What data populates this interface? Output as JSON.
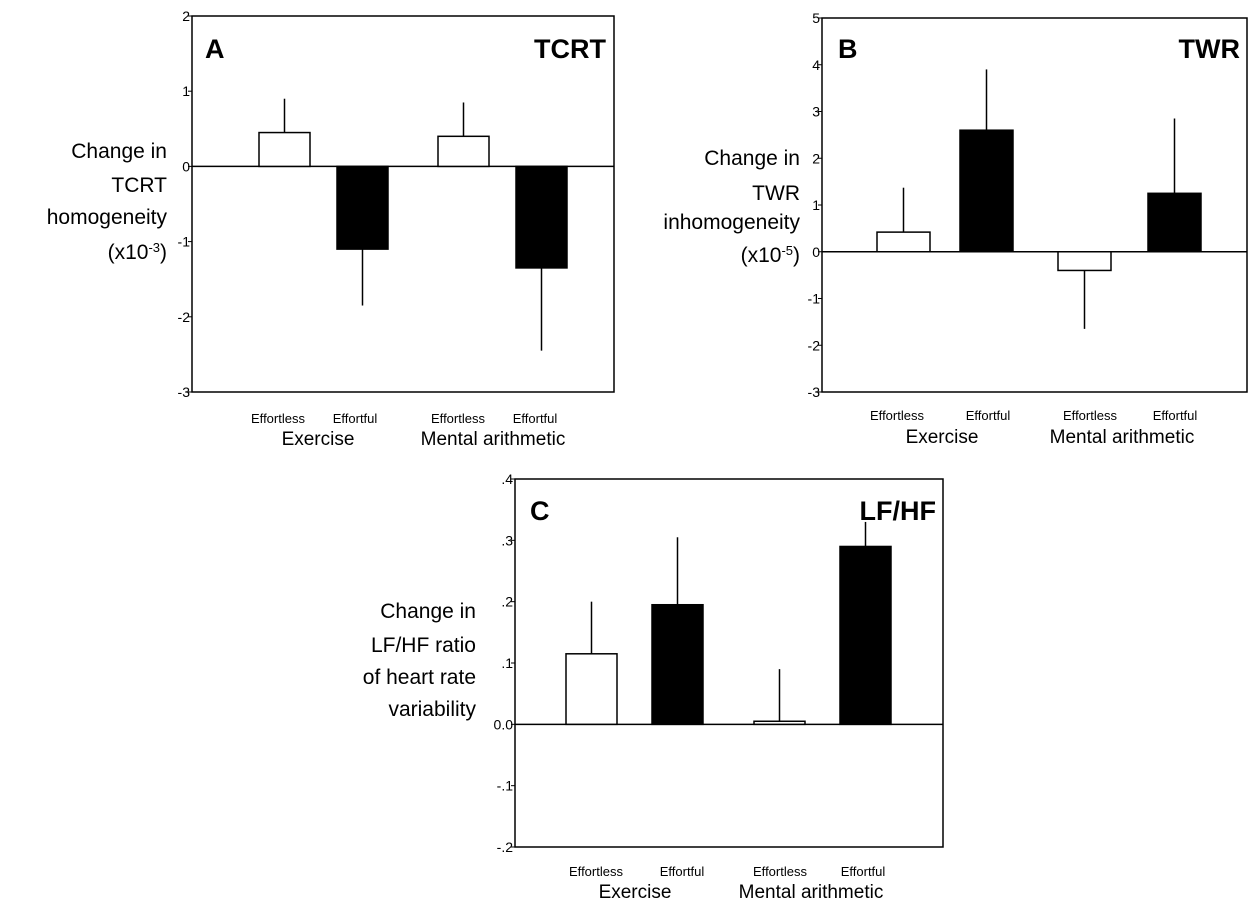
{
  "chart_data": [
    {
      "type": "bar",
      "panel_label": "A",
      "title": "TCRT",
      "ylabel": [
        "Change in",
        "TCRT",
        "homogeneity",
        "(x10",
        "-3",
        ")"
      ],
      "ylim": [
        -3,
        2
      ],
      "yticks": [
        {
          "value": 2,
          "label": "2"
        },
        {
          "value": 1,
          "label": "1"
        },
        {
          "value": 0,
          "label": "0"
        },
        {
          "value": -1,
          "label": "-1"
        },
        {
          "value": -2,
          "label": "-2"
        },
        {
          "value": -3,
          "label": "-3"
        }
      ],
      "categories": [
        "Effortless",
        "Effortful",
        "Effortless",
        "Effortful"
      ],
      "groups": [
        "Exercise",
        "Mental arithmetic"
      ],
      "values": [
        0.45,
        -1.1,
        0.4,
        -1.35
      ],
      "errors": [
        0.45,
        0.75,
        0.45,
        1.1
      ],
      "fills": [
        "#ffffff",
        "#000000",
        "#ffffff",
        "#000000"
      ]
    },
    {
      "type": "bar",
      "panel_label": "B",
      "title": "TWR",
      "ylabel": [
        "Change in",
        "TWR",
        "inhomogeneity",
        "(x10",
        "-5",
        ")"
      ],
      "ylim": [
        -3,
        5
      ],
      "yticks": [
        {
          "value": 5,
          "label": "5"
        },
        {
          "value": 4,
          "label": "4"
        },
        {
          "value": 3,
          "label": "3"
        },
        {
          "value": 2,
          "label": "2"
        },
        {
          "value": 1,
          "label": "1"
        },
        {
          "value": 0,
          "label": "0"
        },
        {
          "value": -1,
          "label": "-1"
        },
        {
          "value": -2,
          "label": "-2"
        },
        {
          "value": -3,
          "label": "-3"
        }
      ],
      "categories": [
        "Effortless",
        "Effortful",
        "Effortless",
        "Effortful"
      ],
      "groups": [
        "Exercise",
        "Mental arithmetic"
      ],
      "values": [
        0.42,
        2.6,
        -0.4,
        1.25
      ],
      "errors": [
        0.95,
        1.3,
        1.25,
        1.6
      ],
      "fills": [
        "#ffffff",
        "#000000",
        "#ffffff",
        "#000000"
      ]
    },
    {
      "type": "bar",
      "panel_label": "C",
      "title": "LF/HF",
      "ylabel": [
        "Change in",
        "LF/HF ratio",
        "of heart rate",
        "variability"
      ],
      "ylim": [
        -0.2,
        0.4
      ],
      "yticks": [
        {
          "value": 0.4,
          "label": ".4"
        },
        {
          "value": 0.3,
          "label": ".3"
        },
        {
          "value": 0.2,
          "label": ".2"
        },
        {
          "value": 0.1,
          "label": ".1"
        },
        {
          "value": 0.0,
          "label": "0.0"
        },
        {
          "value": -0.1,
          "label": "-.1"
        },
        {
          "value": -0.2,
          "label": "-.2"
        }
      ],
      "categories": [
        "Effortless",
        "Effortful",
        "Effortless",
        "Effortful"
      ],
      "groups": [
        "Exercise",
        "Mental arithmetic"
      ],
      "values": [
        0.115,
        0.195,
        0.005,
        0.29
      ],
      "errors": [
        0.085,
        0.11,
        0.085,
        0.04
      ],
      "fills": [
        "#ffffff",
        "#000000",
        "#ffffff",
        "#000000"
      ]
    }
  ]
}
